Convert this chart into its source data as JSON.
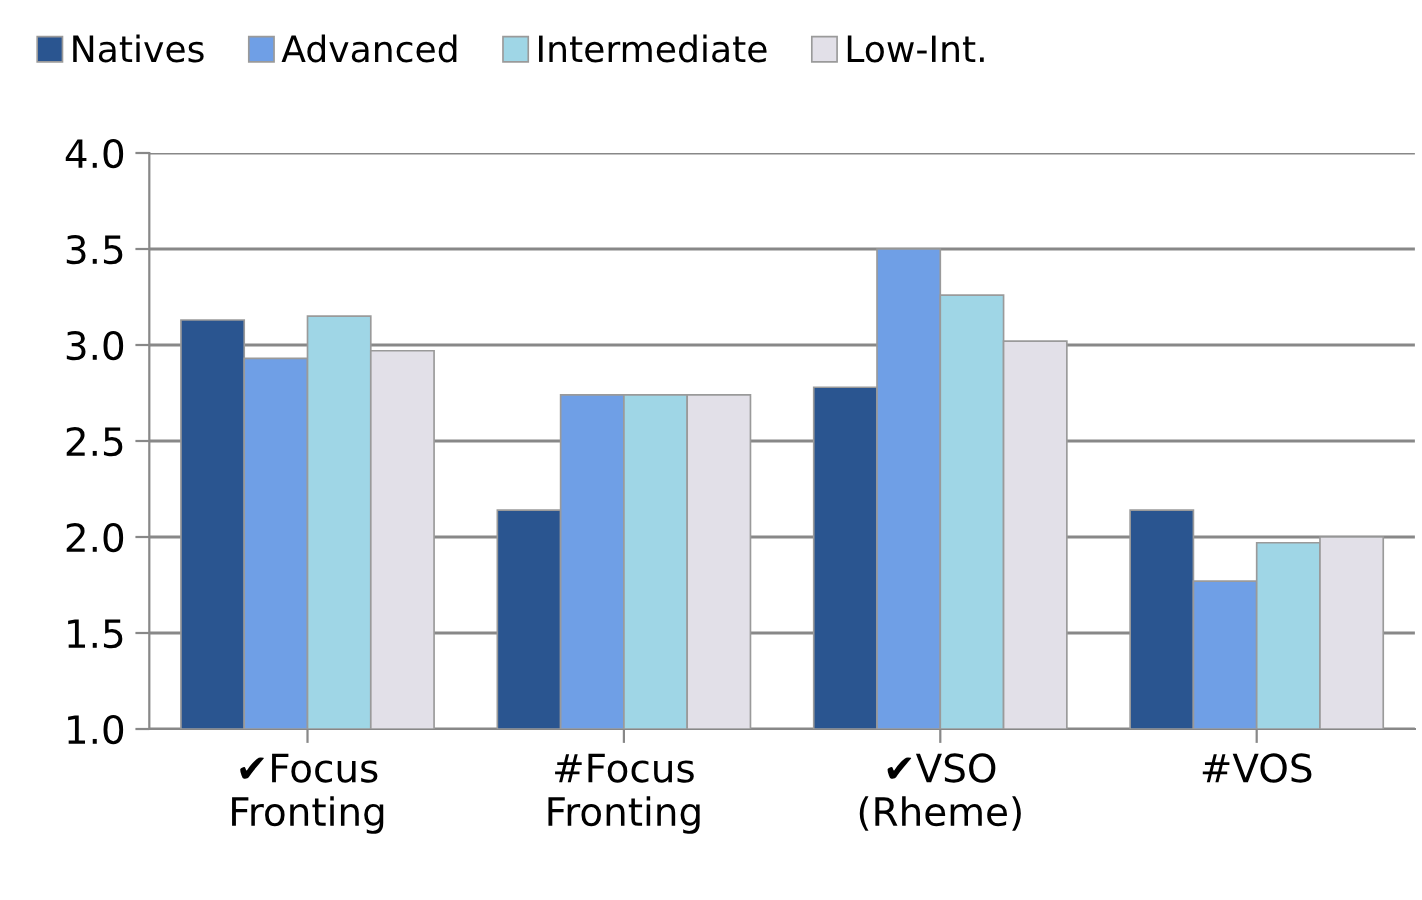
{
  "chart_data": {
    "type": "bar",
    "categories": [
      "✔Focus\nFronting",
      "#Focus\nFronting",
      "✔VSO\n(Rheme)",
      "#VOS"
    ],
    "series": [
      {
        "name": "Natives",
        "color": "#2a5590",
        "values": [
          3.13,
          2.14,
          2.78,
          2.14
        ]
      },
      {
        "name": "Advanced",
        "color": "#6f9fe6",
        "values": [
          2.93,
          2.74,
          3.5,
          1.77
        ]
      },
      {
        "name": "Intermediate",
        "color": "#9fd6e6",
        "values": [
          3.15,
          2.74,
          3.26,
          1.97
        ]
      },
      {
        "name": "Low-Int.",
        "color": "#e2e0e8",
        "values": [
          2.97,
          2.74,
          3.02,
          2.0
        ]
      }
    ],
    "ylim": [
      1.0,
      4.0
    ],
    "yticks": [
      {
        "value": 1.0,
        "label": "1.0"
      },
      {
        "value": 1.5,
        "label": "1.5"
      },
      {
        "value": 2.0,
        "label": "2.0"
      },
      {
        "value": 2.5,
        "label": "2.5"
      },
      {
        "value": 3.0,
        "label": "3.0"
      },
      {
        "value": 3.5,
        "label": "3.5"
      },
      {
        "value": 4.0,
        "label": "4.0"
      }
    ],
    "grid": "y",
    "legend": "top left"
  }
}
